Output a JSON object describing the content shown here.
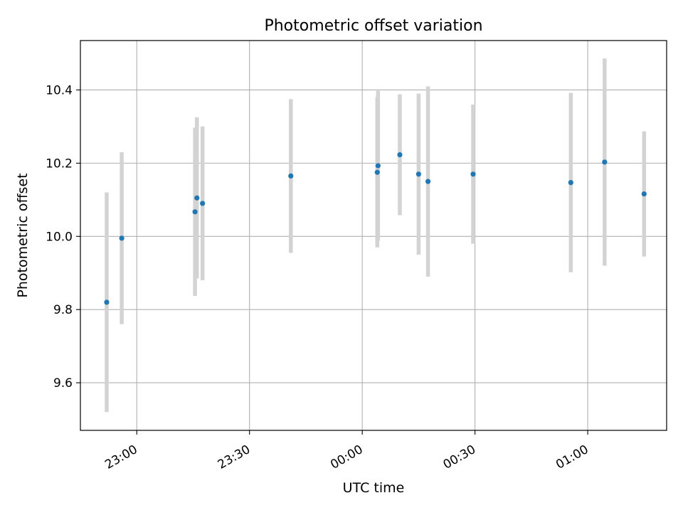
{
  "chart_data": {
    "type": "scatter",
    "title": "Photometric offset variation",
    "xlabel": "UTC time",
    "ylabel": "Photometric offset",
    "x_ticks": [
      "23:00",
      "23:30",
      "00:00",
      "00:30",
      "01:00"
    ],
    "y_ticks": [
      "9.6",
      "9.8",
      "10.0",
      "10.2",
      "10.4"
    ],
    "xlim": [
      "22:45",
      "01:21"
    ],
    "ylim": [
      9.47,
      10.535
    ],
    "grid": true,
    "colors": {
      "marker": "#1f77b4",
      "errorbar": "#d3d3d3",
      "grid": "#b0b0b0"
    },
    "series": [
      {
        "points": [
          {
            "time": "22:52",
            "y": 9.82,
            "yerr": 0.3
          },
          {
            "time": "22:56",
            "y": 9.995,
            "yerr": 0.235
          },
          {
            "time": "23:15.5",
            "y": 10.067,
            "yerr": 0.23
          },
          {
            "time": "23:16",
            "y": 10.105,
            "yerr": 0.22
          },
          {
            "time": "23:17.5",
            "y": 10.09,
            "yerr": 0.21
          },
          {
            "time": "23:41",
            "y": 10.165,
            "yerr": 0.21
          },
          {
            "time": "00:04",
            "y": 10.175,
            "yerr": 0.205
          },
          {
            "time": "00:04.2",
            "y": 10.193,
            "yerr": 0.205
          },
          {
            "time": "00:10",
            "y": 10.223,
            "yerr": 0.165
          },
          {
            "time": "00:15",
            "y": 10.17,
            "yerr": 0.22
          },
          {
            "time": "00:17.5",
            "y": 10.15,
            "yerr": 0.26
          },
          {
            "time": "00:29.5",
            "y": 10.17,
            "yerr": 0.19
          },
          {
            "time": "00:55.5",
            "y": 10.147,
            "yerr": 0.245
          },
          {
            "time": "01:04.5",
            "y": 10.203,
            "yerr": 0.283
          },
          {
            "time": "01:15",
            "y": 10.116,
            "yerr": 0.171
          }
        ]
      }
    ]
  }
}
